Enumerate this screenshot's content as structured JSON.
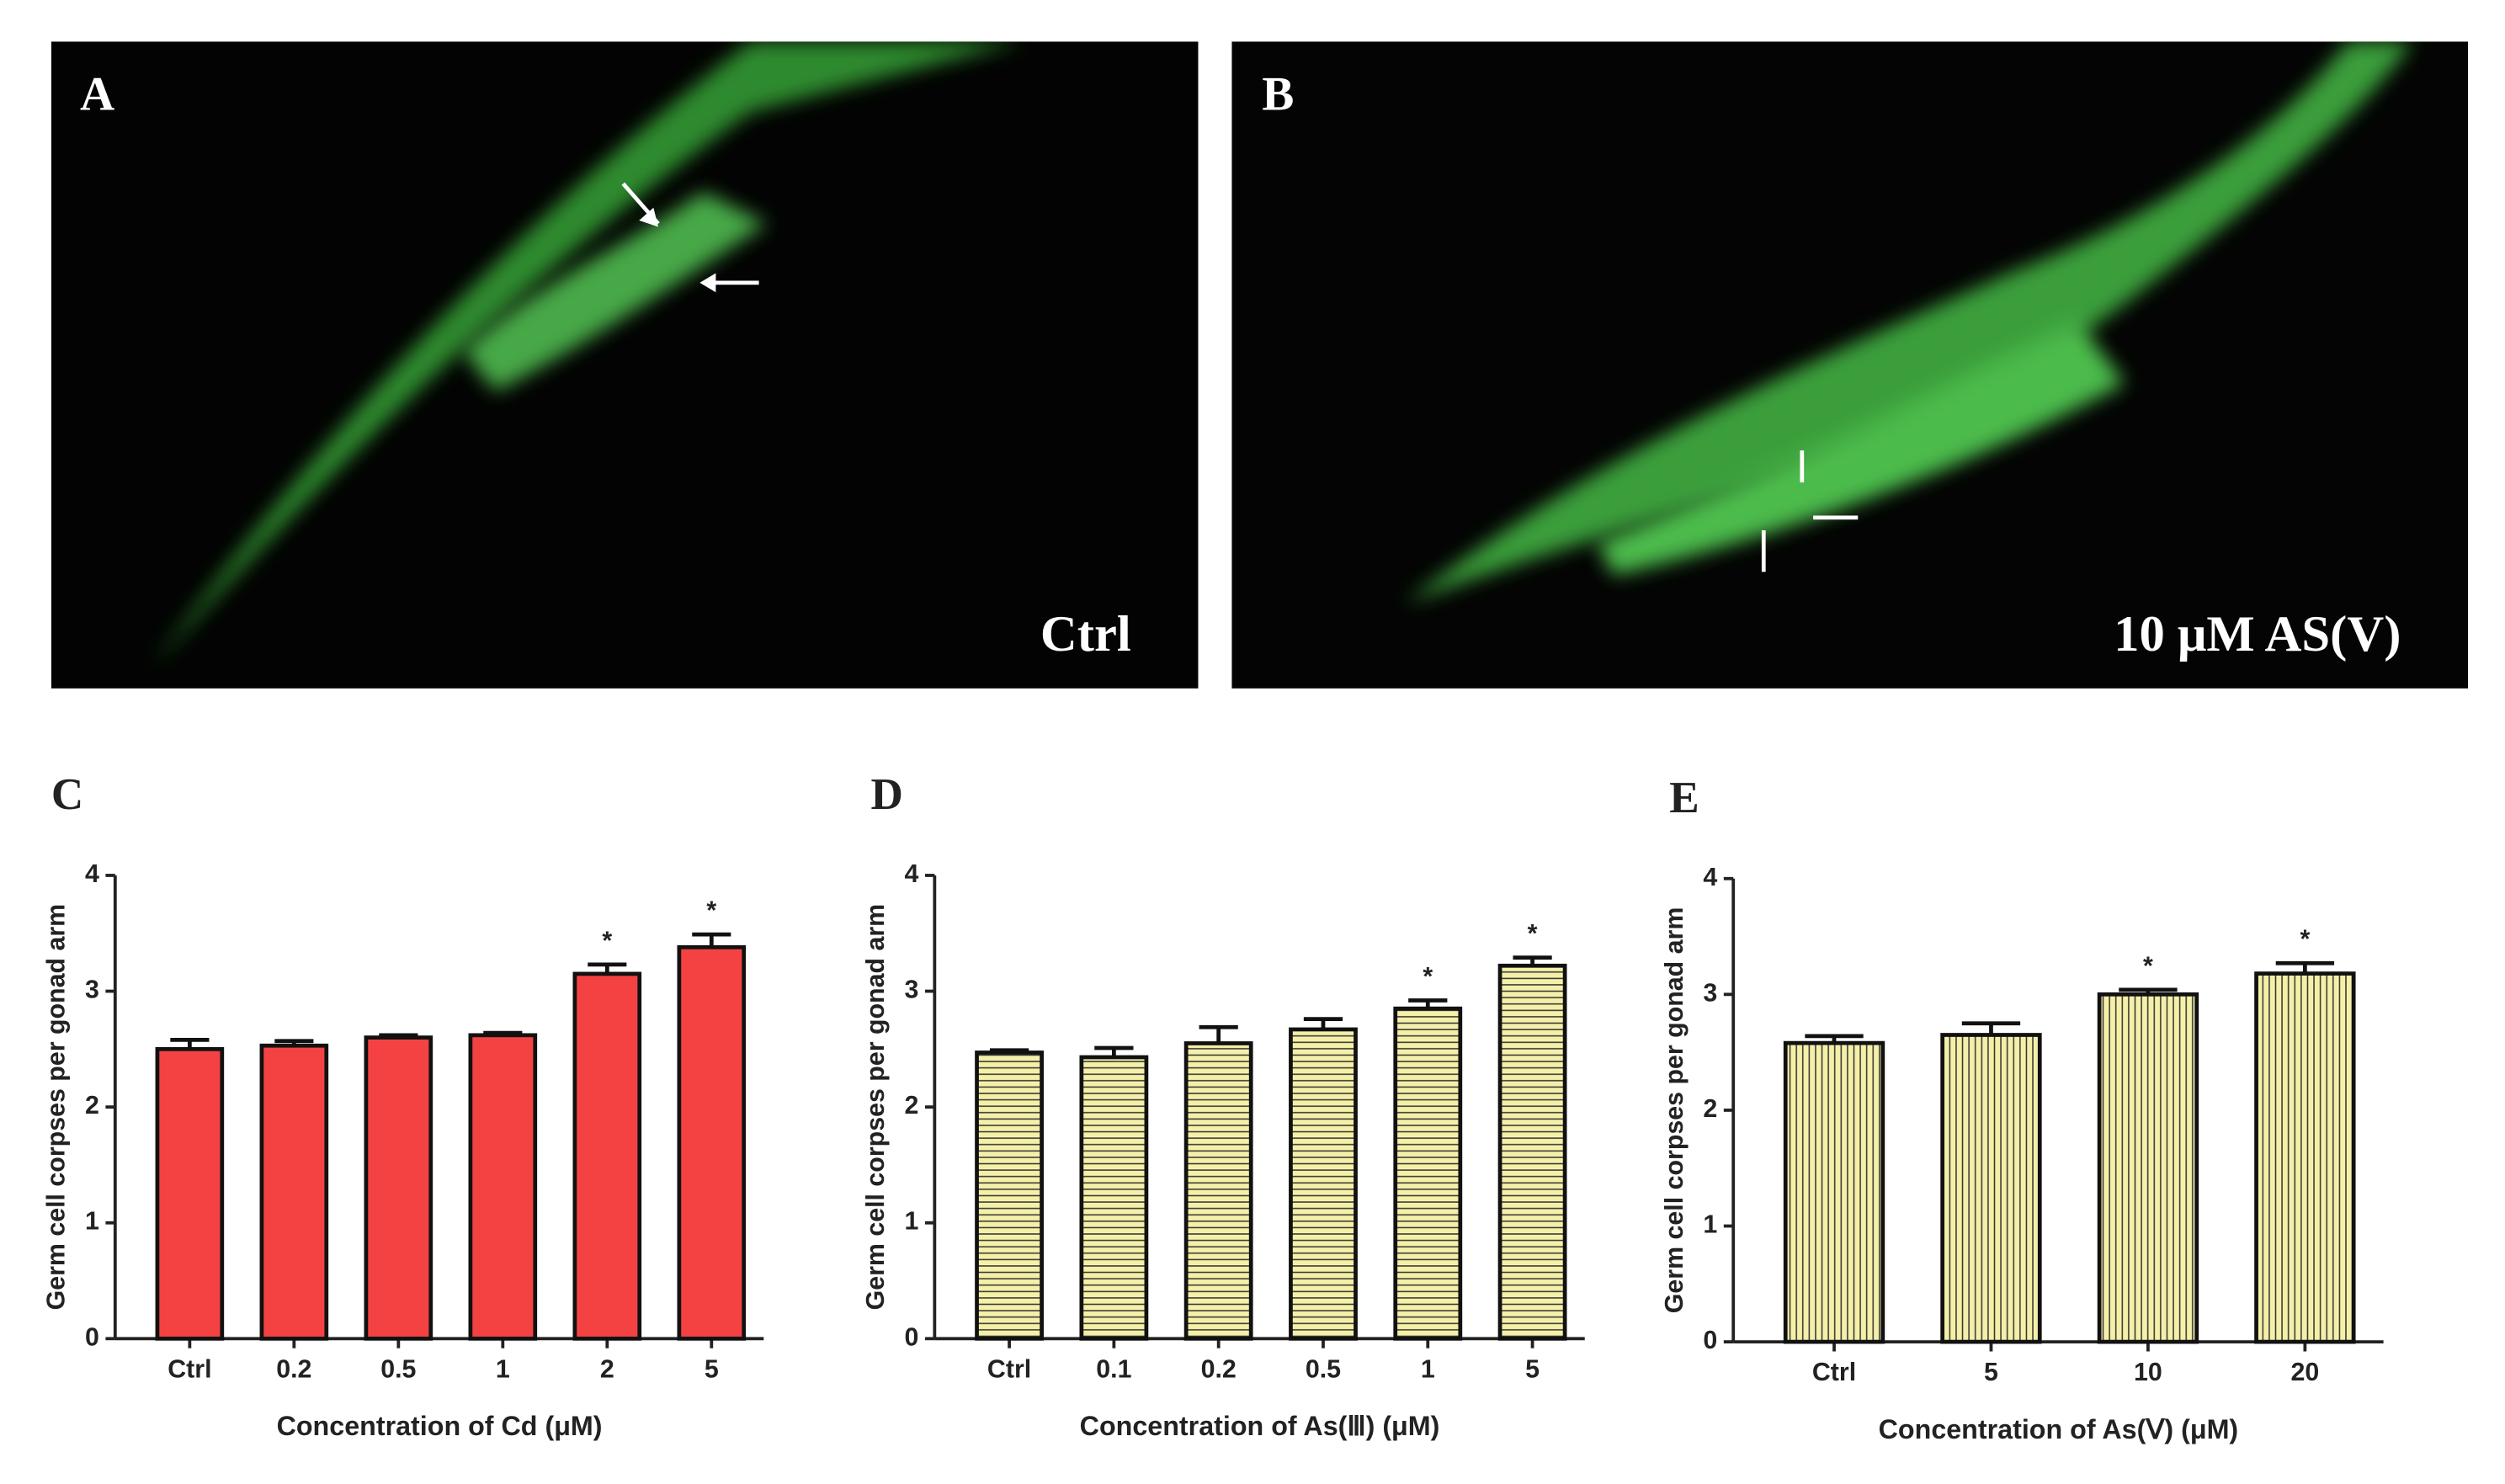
{
  "images": [
    {
      "label": "A",
      "caption": "Ctrl"
    },
    {
      "label": "B",
      "caption": "10 μM AS(V)"
    }
  ],
  "chart_data": [
    {
      "type": "bar",
      "panel": "C",
      "ylabel": "Germ cell corpses per gonad arm",
      "xlabel": "Concentration of Cd (μM)",
      "categories": [
        "Ctrl",
        "0.2",
        "0.5",
        "1",
        "2",
        "5"
      ],
      "values": [
        2.5,
        2.53,
        2.6,
        2.62,
        3.15,
        3.38
      ],
      "errors": [
        0.08,
        0.04,
        0.02,
        0.02,
        0.08,
        0.11
      ],
      "annotations": [
        null,
        null,
        null,
        null,
        "*",
        "*"
      ],
      "color": "#f44242",
      "pattern": null,
      "ylim": [
        0,
        4
      ],
      "yticks": [
        0,
        1,
        2,
        3,
        4
      ]
    },
    {
      "type": "bar",
      "panel": "D",
      "ylabel": "Germ cell corpses per gonad arm",
      "xlabel": "Concentration of As(Ⅲ) (μM)",
      "categories": [
        "Ctrl",
        "0.1",
        "0.2",
        "0.5",
        "1",
        "5"
      ],
      "values": [
        2.47,
        2.43,
        2.55,
        2.67,
        2.85,
        3.22
      ],
      "errors": [
        0.02,
        0.08,
        0.14,
        0.09,
        0.07,
        0.07
      ],
      "annotations": [
        null,
        null,
        null,
        null,
        "*",
        "*"
      ],
      "color": "#f5f0a8",
      "pattern": "horizontal",
      "ylim": [
        0,
        4
      ],
      "yticks": [
        0,
        1,
        2,
        3,
        4
      ]
    },
    {
      "type": "bar",
      "panel": "E",
      "ylabel": "Germ cell corpses per gonad arm",
      "xlabel": "Concentration of As(Ⅴ) (μM)",
      "categories": [
        "Ctrl",
        "5",
        "10",
        "20"
      ],
      "values": [
        2.58,
        2.65,
        3.0,
        3.18
      ],
      "errors": [
        0.06,
        0.1,
        0.04,
        0.09
      ],
      "annotations": [
        null,
        null,
        "*",
        "*"
      ],
      "color": "#f5f0a8",
      "pattern": "vertical",
      "ylim": [
        0,
        4
      ],
      "yticks": [
        0,
        1,
        2,
        3,
        4
      ]
    }
  ]
}
